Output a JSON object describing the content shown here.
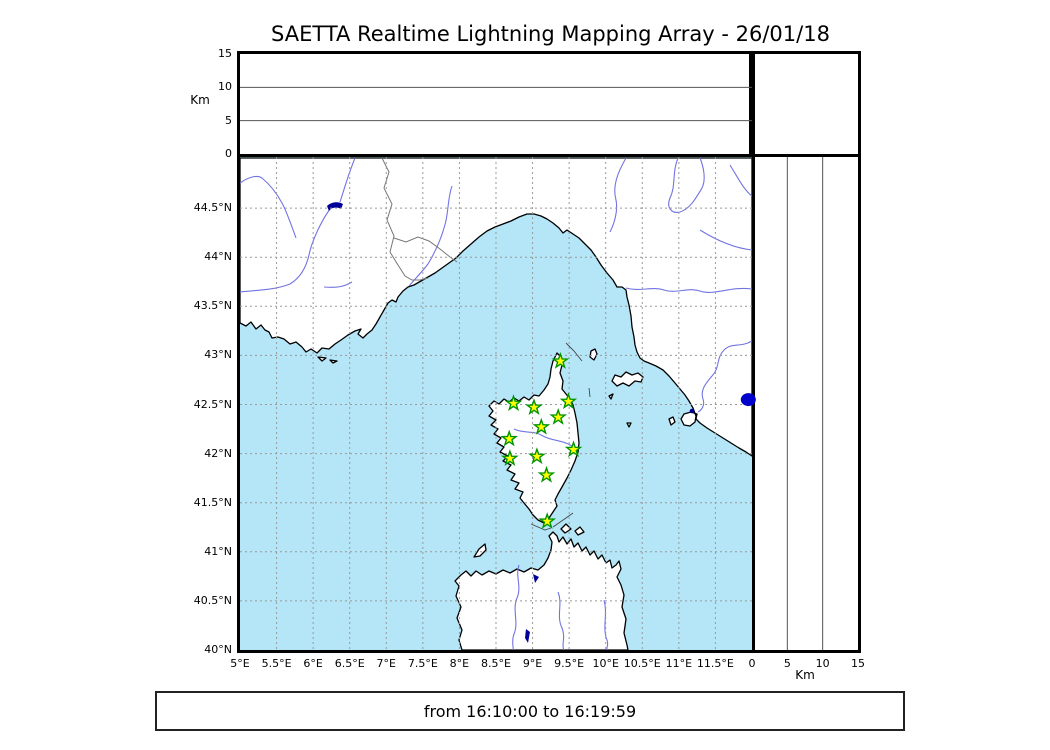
{
  "title": "SAETTA Realtime Lightning Mapping Array - 26/01/18",
  "footer": {
    "time_range": "from 16:10:00 to 16:19:59"
  },
  "axes": {
    "lon": {
      "range": [
        5.0,
        12.0
      ],
      "ticks": [
        {
          "value": 5.0,
          "label": "5°E"
        },
        {
          "value": 5.5,
          "label": "5.5°E"
        },
        {
          "value": 6.0,
          "label": "6°E"
        },
        {
          "value": 6.5,
          "label": "6.5°E"
        },
        {
          "value": 7.0,
          "label": "7°E"
        },
        {
          "value": 7.5,
          "label": "7.5°E"
        },
        {
          "value": 8.0,
          "label": "8°E"
        },
        {
          "value": 8.5,
          "label": "8.5°E"
        },
        {
          "value": 9.0,
          "label": "9°E"
        },
        {
          "value": 9.5,
          "label": "9.5°E"
        },
        {
          "value": 10.0,
          "label": "10°E"
        },
        {
          "value": 10.5,
          "label": "10.5°E"
        },
        {
          "value": 11.0,
          "label": "11°E"
        },
        {
          "value": 11.5,
          "label": "11.5°E"
        }
      ],
      "gridline_values": [
        5.5,
        6.0,
        6.5,
        7.0,
        7.5,
        8.0,
        8.5,
        9.0,
        9.5,
        10.0,
        10.5,
        11.0,
        11.5
      ]
    },
    "lat": {
      "range": [
        40.0,
        45.02
      ],
      "ticks": [
        {
          "value": 44.5,
          "label": "44.5°N"
        },
        {
          "value": 44.0,
          "label": "44°N"
        },
        {
          "value": 43.5,
          "label": "43.5°N"
        },
        {
          "value": 43.0,
          "label": "43°N"
        },
        {
          "value": 42.5,
          "label": "42.5°N"
        },
        {
          "value": 42.0,
          "label": "42°N"
        },
        {
          "value": 41.5,
          "label": "41.5°N"
        },
        {
          "value": 41.0,
          "label": "41°N"
        },
        {
          "value": 40.5,
          "label": "40.5°N"
        },
        {
          "value": 40.0,
          "label": "40°N"
        }
      ],
      "gridline_values": [
        40.5,
        41.0,
        41.5,
        42.0,
        42.5,
        43.0,
        43.5,
        44.0,
        44.5
      ]
    },
    "alt": {
      "range": [
        0,
        15
      ],
      "unit": "Km",
      "ticks": [
        {
          "value": 0,
          "label": "0"
        },
        {
          "value": 5,
          "label": "5"
        },
        {
          "value": 10,
          "label": "10"
        },
        {
          "value": 15,
          "label": "15"
        }
      ],
      "gridline_values": [
        5,
        10
      ]
    }
  },
  "stations": [
    {
      "lon": 9.38,
      "lat": 42.94
    },
    {
      "lon": 8.74,
      "lat": 42.51
    },
    {
      "lon": 9.02,
      "lat": 42.47
    },
    {
      "lon": 9.49,
      "lat": 42.53
    },
    {
      "lon": 9.35,
      "lat": 42.37
    },
    {
      "lon": 9.12,
      "lat": 42.27
    },
    {
      "lon": 8.68,
      "lat": 42.15
    },
    {
      "lon": 9.56,
      "lat": 42.04
    },
    {
      "lon": 8.69,
      "lat": 41.95
    },
    {
      "lon": 9.06,
      "lat": 41.97
    },
    {
      "lon": 9.19,
      "lat": 41.78
    },
    {
      "lon": 9.2,
      "lat": 41.31
    }
  ],
  "sea_marker": {
    "lon": 11.95,
    "lat": 42.55
  },
  "colors": {
    "sea": "#b4e6f7",
    "land": "#ffffff",
    "coast": "#000000",
    "river": "#7274e2",
    "grid": "#999999",
    "admin_border": "#777777",
    "star_fill": "#ffff00",
    "star_stroke": "#009500",
    "marker": "#0000cc",
    "lake": "#000099"
  }
}
